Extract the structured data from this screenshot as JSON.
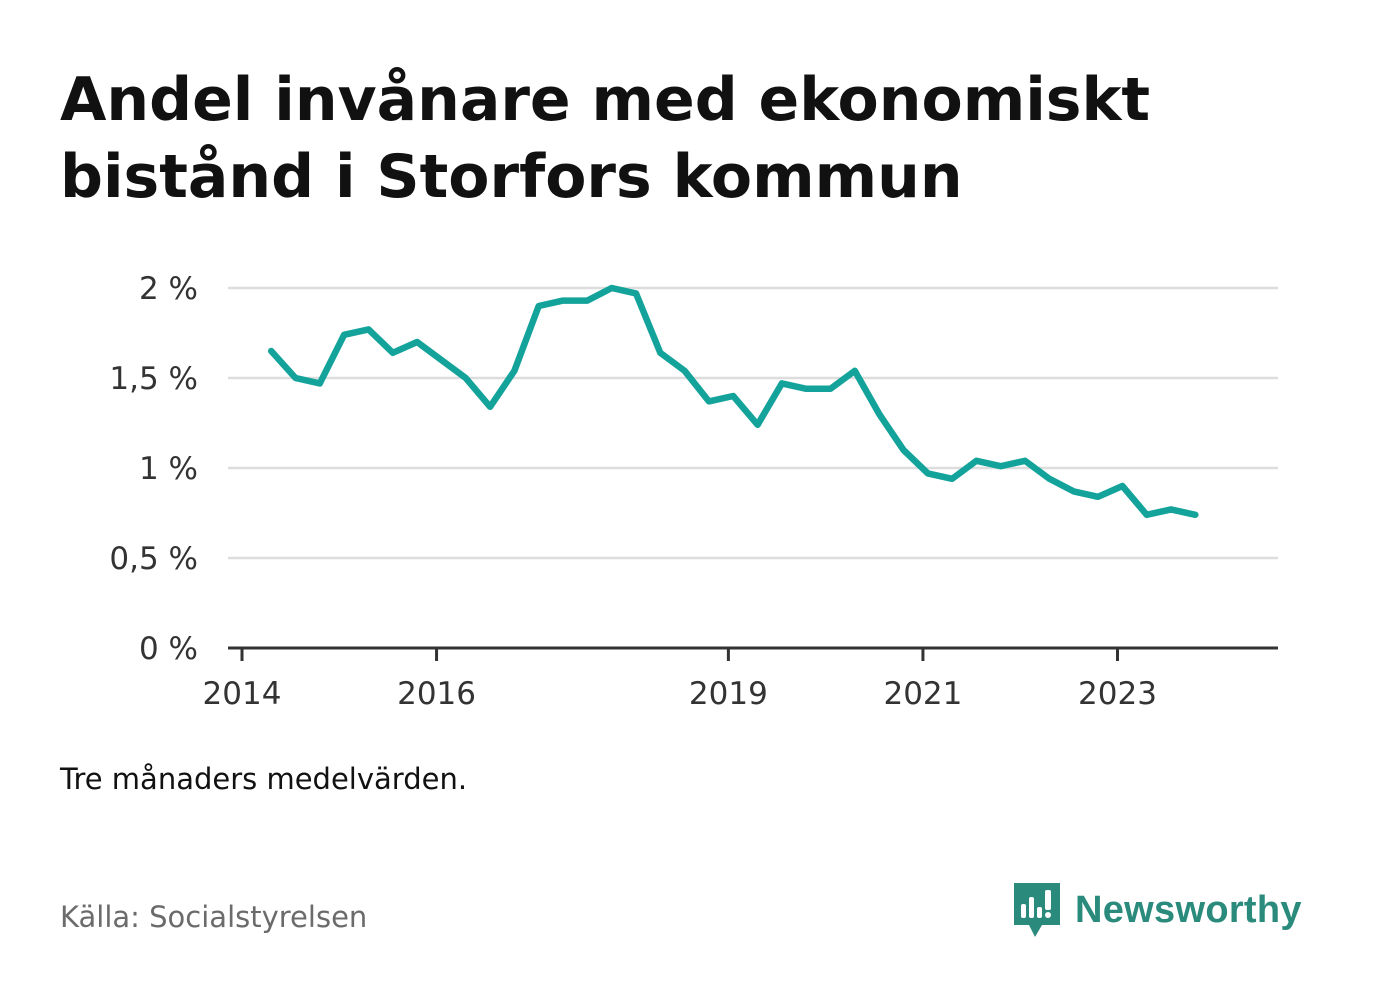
{
  "title": "Andel invånare med ekonomiskt bistånd i Storfors kommun",
  "note": "Tre månaders medelvärden.",
  "source": "Källa: Socialstyrelsen",
  "brand": {
    "name": "Newsworthy",
    "icon": "newsworthy-logo-icon",
    "color": "#2a8a7c"
  },
  "colors": {
    "line": "#13a39a",
    "grid": "#dddddd",
    "axis": "#333333"
  },
  "chart_data": {
    "type": "line",
    "title": "Andel invånare med ekonomiskt bistånd i Storfors kommun",
    "xlabel": "",
    "ylabel": "",
    "ylim": [
      0,
      2
    ],
    "x_range": [
      2014,
      2024.65
    ],
    "grid": true,
    "y_ticks": [
      {
        "value": 0,
        "label": "0 %"
      },
      {
        "value": 0.5,
        "label": "0,5 %"
      },
      {
        "value": 1,
        "label": "1 %"
      },
      {
        "value": 1.5,
        "label": "1,5 %"
      },
      {
        "value": 2,
        "label": "2 %"
      }
    ],
    "x_ticks": [
      {
        "value": 2014,
        "label": "2014"
      },
      {
        "value": 2016,
        "label": "2016"
      },
      {
        "value": 2019,
        "label": "2019"
      },
      {
        "value": 2021,
        "label": "2021"
      },
      {
        "value": 2023,
        "label": "2023"
      }
    ],
    "series": [
      {
        "values": [
          {
            "x": 2014.3,
            "y": 1.65
          },
          {
            "x": 2014.55,
            "y": 1.5
          },
          {
            "x": 2014.8,
            "y": 1.47
          },
          {
            "x": 2015.05,
            "y": 1.74
          },
          {
            "x": 2015.3,
            "y": 1.77
          },
          {
            "x": 2015.55,
            "y": 1.64
          },
          {
            "x": 2015.8,
            "y": 1.7
          },
          {
            "x": 2016.05,
            "y": 1.6
          },
          {
            "x": 2016.3,
            "y": 1.5
          },
          {
            "x": 2016.55,
            "y": 1.34
          },
          {
            "x": 2016.8,
            "y": 1.54
          },
          {
            "x": 2017.05,
            "y": 1.9
          },
          {
            "x": 2017.3,
            "y": 1.93
          },
          {
            "x": 2017.55,
            "y": 1.93
          },
          {
            "x": 2017.8,
            "y": 2.0
          },
          {
            "x": 2018.05,
            "y": 1.97
          },
          {
            "x": 2018.3,
            "y": 1.64
          },
          {
            "x": 2018.55,
            "y": 1.54
          },
          {
            "x": 2018.8,
            "y": 1.37
          },
          {
            "x": 2019.05,
            "y": 1.4
          },
          {
            "x": 2019.3,
            "y": 1.24
          },
          {
            "x": 2019.55,
            "y": 1.47
          },
          {
            "x": 2019.8,
            "y": 1.44
          },
          {
            "x": 2020.05,
            "y": 1.44
          },
          {
            "x": 2020.3,
            "y": 1.54
          },
          {
            "x": 2020.55,
            "y": 1.3
          },
          {
            "x": 2020.8,
            "y": 1.1
          },
          {
            "x": 2021.05,
            "y": 0.97
          },
          {
            "x": 2021.3,
            "y": 0.94
          },
          {
            "x": 2021.55,
            "y": 1.04
          },
          {
            "x": 2021.8,
            "y": 1.01
          },
          {
            "x": 2022.05,
            "y": 1.04
          },
          {
            "x": 2022.3,
            "y": 0.94
          },
          {
            "x": 2022.55,
            "y": 0.87
          },
          {
            "x": 2022.8,
            "y": 0.84
          },
          {
            "x": 2023.05,
            "y": 0.9
          },
          {
            "x": 2023.3,
            "y": 0.74
          },
          {
            "x": 2023.55,
            "y": 0.77
          },
          {
            "x": 2023.8,
            "y": 0.74
          }
        ]
      }
    ]
  }
}
